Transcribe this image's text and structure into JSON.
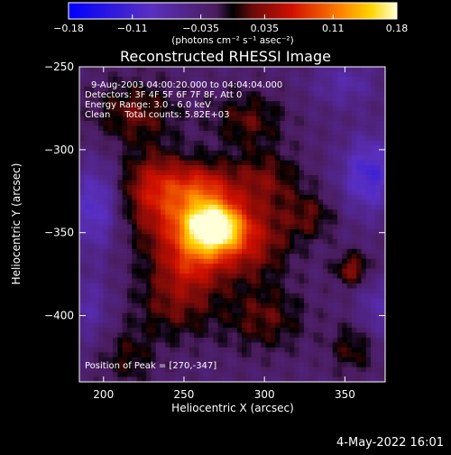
{
  "chart_data": {
    "type": "heatmap",
    "title": "Reconstructed RHESSI Image",
    "xlabel": "Heliocentric X (arcsec)",
    "ylabel": "Heliocentric Y (arcsec)",
    "xlim": [
      185,
      375
    ],
    "ylim": [
      -440,
      -250
    ],
    "x_ticks": [
      "200",
      "250",
      "300",
      "350"
    ],
    "x_tick_values": [
      200,
      250,
      300,
      350
    ],
    "y_ticks": [
      "-250",
      "-300",
      "-350",
      "-400"
    ],
    "y_tick_values": [
      -250,
      -300,
      -350,
      -400
    ],
    "colorbar": {
      "range": [
        -0.18,
        0.18
      ],
      "tick_labels": [
        "-0.18",
        "-0.11",
        "-0.035",
        "0.035",
        "0.11",
        "0.18"
      ],
      "tick_values": [
        -0.18,
        -0.11,
        -0.035,
        0.035,
        0.11,
        0.18
      ],
      "unit_label": "(photons cm⁻² s⁻¹ asec⁻²)"
    },
    "annotations": [
      "9-Aug-2003 04:00:20.000 to 04:04:04.000",
      "Detectors: 3F 4F 5F 6F 7F 8F, Att 0",
      "Energy Range: 3.0 - 6.0 keV",
      "Clean     Total counts: 5.82E+03",
      "Position of Peak = [270,-347]"
    ],
    "peak": {
      "x": 270,
      "y": -347
    },
    "blobs": [
      {
        "x": 268,
        "y": -347,
        "a": 0.175,
        "sx": 12,
        "sy": 10
      },
      {
        "x": 250,
        "y": -340,
        "a": 0.09,
        "sx": 22,
        "sy": 18
      },
      {
        "x": 290,
        "y": -355,
        "a": 0.07,
        "sx": 18,
        "sy": 16
      },
      {
        "x": 255,
        "y": -368,
        "a": 0.06,
        "sx": 14,
        "sy": 12
      },
      {
        "x": 232,
        "y": -320,
        "a": 0.06,
        "sx": 14,
        "sy": 13
      },
      {
        "x": 262,
        "y": -322,
        "a": 0.055,
        "sx": 12,
        "sy": 10
      },
      {
        "x": 300,
        "y": -318,
        "a": 0.05,
        "sx": 16,
        "sy": 12
      },
      {
        "x": 220,
        "y": -278,
        "a": 0.05,
        "sx": 18,
        "sy": 14
      },
      {
        "x": 290,
        "y": -282,
        "a": 0.045,
        "sx": 16,
        "sy": 12
      },
      {
        "x": 245,
        "y": -392,
        "a": 0.05,
        "sx": 18,
        "sy": 16
      },
      {
        "x": 300,
        "y": -402,
        "a": 0.045,
        "sx": 18,
        "sy": 14
      },
      {
        "x": 355,
        "y": -372,
        "a": 0.06,
        "sx": 8,
        "sy": 7
      },
      {
        "x": 355,
        "y": -420,
        "a": 0.04,
        "sx": 10,
        "sy": 10
      },
      {
        "x": 328,
        "y": -340,
        "a": 0.04,
        "sx": 12,
        "sy": 10
      },
      {
        "x": 215,
        "y": -425,
        "a": 0.035,
        "sx": 12,
        "sy": 12
      },
      {
        "x": 195,
        "y": -335,
        "a": -0.07,
        "sx": 10,
        "sy": 18
      },
      {
        "x": 365,
        "y": -315,
        "a": -0.08,
        "sx": 12,
        "sy": 16
      },
      {
        "x": 350,
        "y": -260,
        "a": -0.04,
        "sx": 14,
        "sy": 10
      },
      {
        "x": 190,
        "y": -395,
        "a": -0.04,
        "sx": 10,
        "sy": 14
      },
      {
        "x": 370,
        "y": -395,
        "a": -0.04,
        "sx": 8,
        "sy": 14
      }
    ],
    "baseline": -0.03
  },
  "footer": {
    "timestamp": "4-May-2022 16:01"
  }
}
